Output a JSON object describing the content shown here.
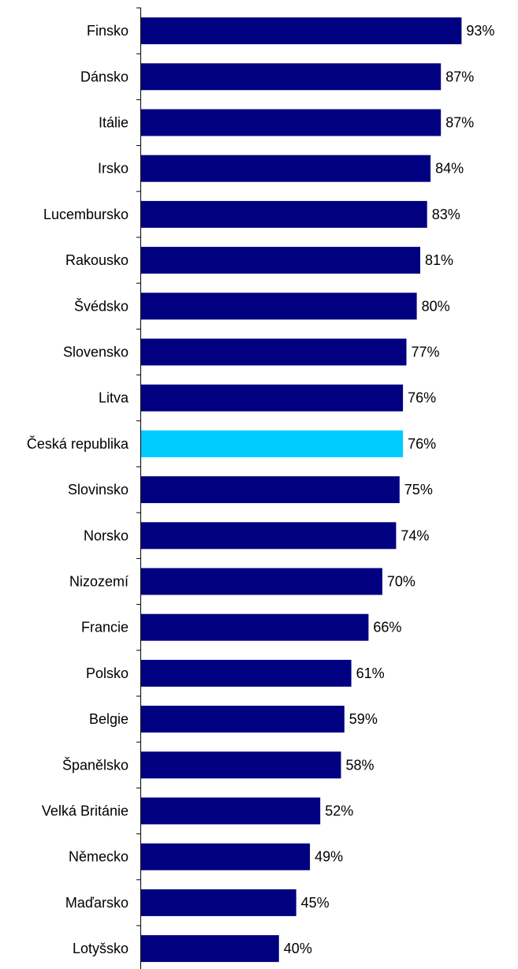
{
  "chart_data": {
    "type": "bar",
    "orientation": "horizontal",
    "categories": [
      "Finsko",
      "Dánsko",
      "Itálie",
      "Irsko",
      "Lucembursko",
      "Rakousko",
      "Švédsko",
      "Slovensko",
      "Litva",
      "Česká republika",
      "Slovinsko",
      "Norsko",
      "Nizozemí",
      "Francie",
      "Polsko",
      "Belgie",
      "Španělsko",
      "Velká Británie",
      "Německo",
      "Maďarsko",
      "Lotyšsko"
    ],
    "values": [
      93,
      87,
      87,
      84,
      83,
      81,
      80,
      77,
      76,
      76,
      75,
      74,
      70,
      66,
      61,
      59,
      58,
      52,
      49,
      45,
      40
    ],
    "value_labels": [
      "93%",
      "87%",
      "87%",
      "84%",
      "83%",
      "81%",
      "80%",
      "77%",
      "76%",
      "76%",
      "75%",
      "74%",
      "70%",
      "66%",
      "61%",
      "59%",
      "58%",
      "52%",
      "49%",
      "45%",
      "40%"
    ],
    "xlim": [
      0,
      100
    ],
    "grid": false,
    "bar_color": "#000080",
    "highlight_color": "#00CCFF",
    "highlight_category": "Česká republika"
  }
}
